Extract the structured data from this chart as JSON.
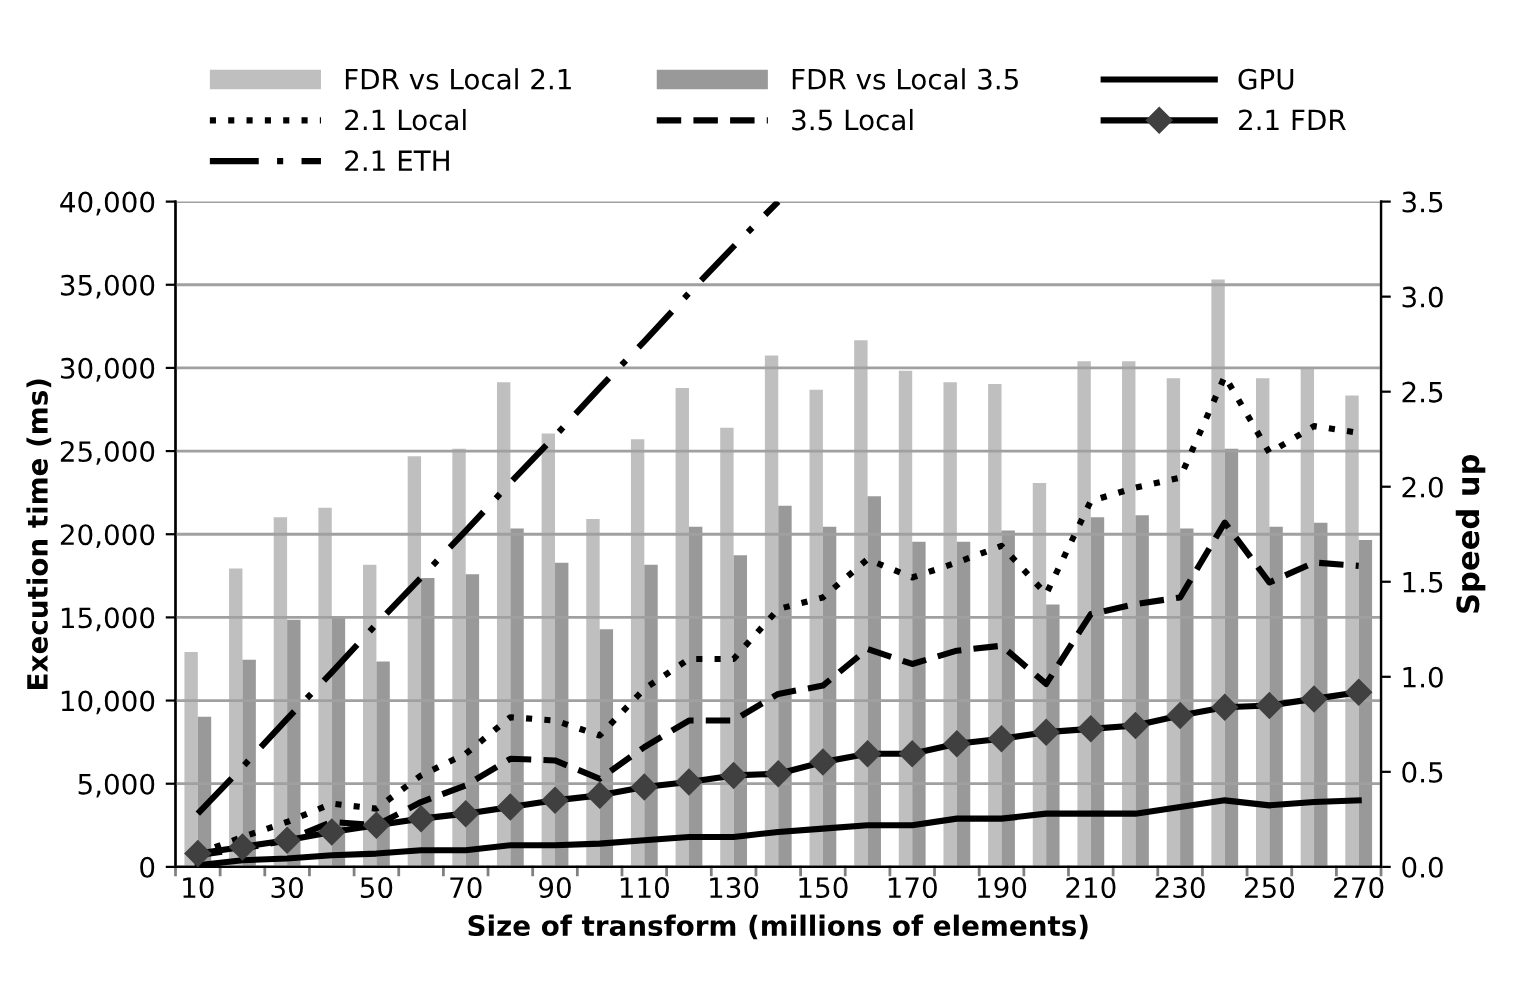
{
  "chart_data": {
    "type": "line",
    "xlabel": "Size of transform (millions of elements)",
    "ylabel": "Execution time (ms)",
    "y2label": "Speed up",
    "categories": [
      "10",
      null,
      "30",
      null,
      "50",
      null,
      "70",
      null,
      "90",
      null,
      "110",
      null,
      "130",
      null,
      "150",
      null,
      "170",
      null,
      "190",
      null,
      "210",
      null,
      "230",
      null,
      "250",
      null,
      "270"
    ],
    "series": [
      {
        "name": "FDR vs Local 2.1",
        "type": "bar",
        "axis": "y2",
        "color": "#bfbfbf",
        "values": [
          1.13,
          1.57,
          1.84,
          1.89,
          1.59,
          2.16,
          2.2,
          2.55,
          2.28,
          1.83,
          2.25,
          2.52,
          2.31,
          2.69,
          2.51,
          2.77,
          2.61,
          2.55,
          2.54,
          2.02,
          2.66,
          2.66,
          2.57,
          3.09,
          2.57,
          2.63,
          2.48
        ]
      },
      {
        "name": "FDR vs Local 3.5",
        "type": "bar",
        "axis": "y2",
        "color": "#999999",
        "values": [
          0.79,
          1.09,
          1.3,
          1.32,
          1.08,
          1.52,
          1.54,
          1.78,
          1.6,
          1.25,
          1.59,
          1.79,
          1.64,
          1.9,
          1.79,
          1.95,
          1.71,
          1.71,
          1.77,
          1.38,
          1.84,
          1.85,
          1.78,
          2.2,
          1.79,
          1.81,
          1.72
        ]
      },
      {
        "name": "GPU",
        "axis": "y",
        "color": "#000000",
        "line_style": "solid",
        "values": [
          100,
          400,
          500,
          700,
          800,
          1000,
          1000,
          1300,
          1300,
          1400,
          1600,
          1800,
          1800,
          2100,
          2300,
          2500,
          2500,
          2900,
          2900,
          3200,
          3200,
          3200,
          3600,
          4000,
          3700,
          3900,
          4000
        ]
      },
      {
        "name": "2.1 Local",
        "axis": "y",
        "color": "#000000",
        "line_style": "dotted",
        "values": [
          800,
          1800,
          2700,
          3800,
          3500,
          5500,
          6800,
          9000,
          8800,
          7900,
          10700,
          12500,
          12500,
          15500,
          16200,
          18500,
          17400,
          18300,
          19300,
          16400,
          22000,
          22800,
          23400,
          29500,
          24900,
          26500,
          26100
        ]
      },
      {
        "name": "3.5 Local",
        "axis": "y",
        "color": "#000000",
        "line_style": "dashed",
        "values": [
          700,
          1100,
          1600,
          2700,
          2500,
          3900,
          4900,
          6500,
          6400,
          5300,
          7200,
          8800,
          8800,
          10400,
          10900,
          13100,
          12200,
          13000,
          13300,
          11000,
          15200,
          15800,
          16200,
          20700,
          17100,
          18300,
          18100
        ]
      },
      {
        "name": "2.1 FDR",
        "axis": "y",
        "color": "#000000",
        "line_style": "solid",
        "marker": "diamond",
        "values": [
          800,
          1200,
          1600,
          2100,
          2500,
          2900,
          3200,
          3600,
          4000,
          4300,
          4800,
          5100,
          5500,
          5600,
          6300,
          6800,
          6800,
          7400,
          7700,
          8100,
          8300,
          8500,
          9100,
          9600,
          9700,
          10100,
          10500
        ]
      },
      {
        "name": "2.1 ETH",
        "axis": "y",
        "color": "#000000",
        "line_style": "dashdot",
        "values": [
          3200,
          6000,
          8900,
          11700,
          14600,
          17400,
          20200,
          23100,
          25900,
          28800,
          31600,
          34500,
          37300,
          40000,
          null,
          null,
          null,
          null,
          null,
          null,
          null,
          null,
          null,
          null,
          null,
          null,
          null
        ]
      }
    ],
    "ylim": [
      0,
      40000
    ],
    "yticks": [
      0,
      {
        "value": 5000,
        "label": "5,000"
      },
      {
        "value": 10000,
        "label": "10,000"
      },
      {
        "value": 15000,
        "label": "15,000"
      },
      {
        "value": 20000,
        "label": "20,000"
      },
      {
        "value": 25000,
        "label": "25,000"
      },
      {
        "value": 30000,
        "label": "30,000"
      },
      {
        "value": 35000,
        "label": "35,000"
      },
      {
        "value": 40000,
        "label": "40,000"
      }
    ],
    "y2lim": [
      0,
      3.5
    ],
    "y2ticks": [
      {
        "value": 0,
        "label": "0.0"
      },
      0.5,
      {
        "value": 1,
        "label": "1.0"
      },
      1.5,
      {
        "value": 2,
        "label": "2.0"
      },
      2.5,
      {
        "value": 3,
        "label": "3.0"
      },
      3.5
    ],
    "grid": "y",
    "legend": "top"
  }
}
